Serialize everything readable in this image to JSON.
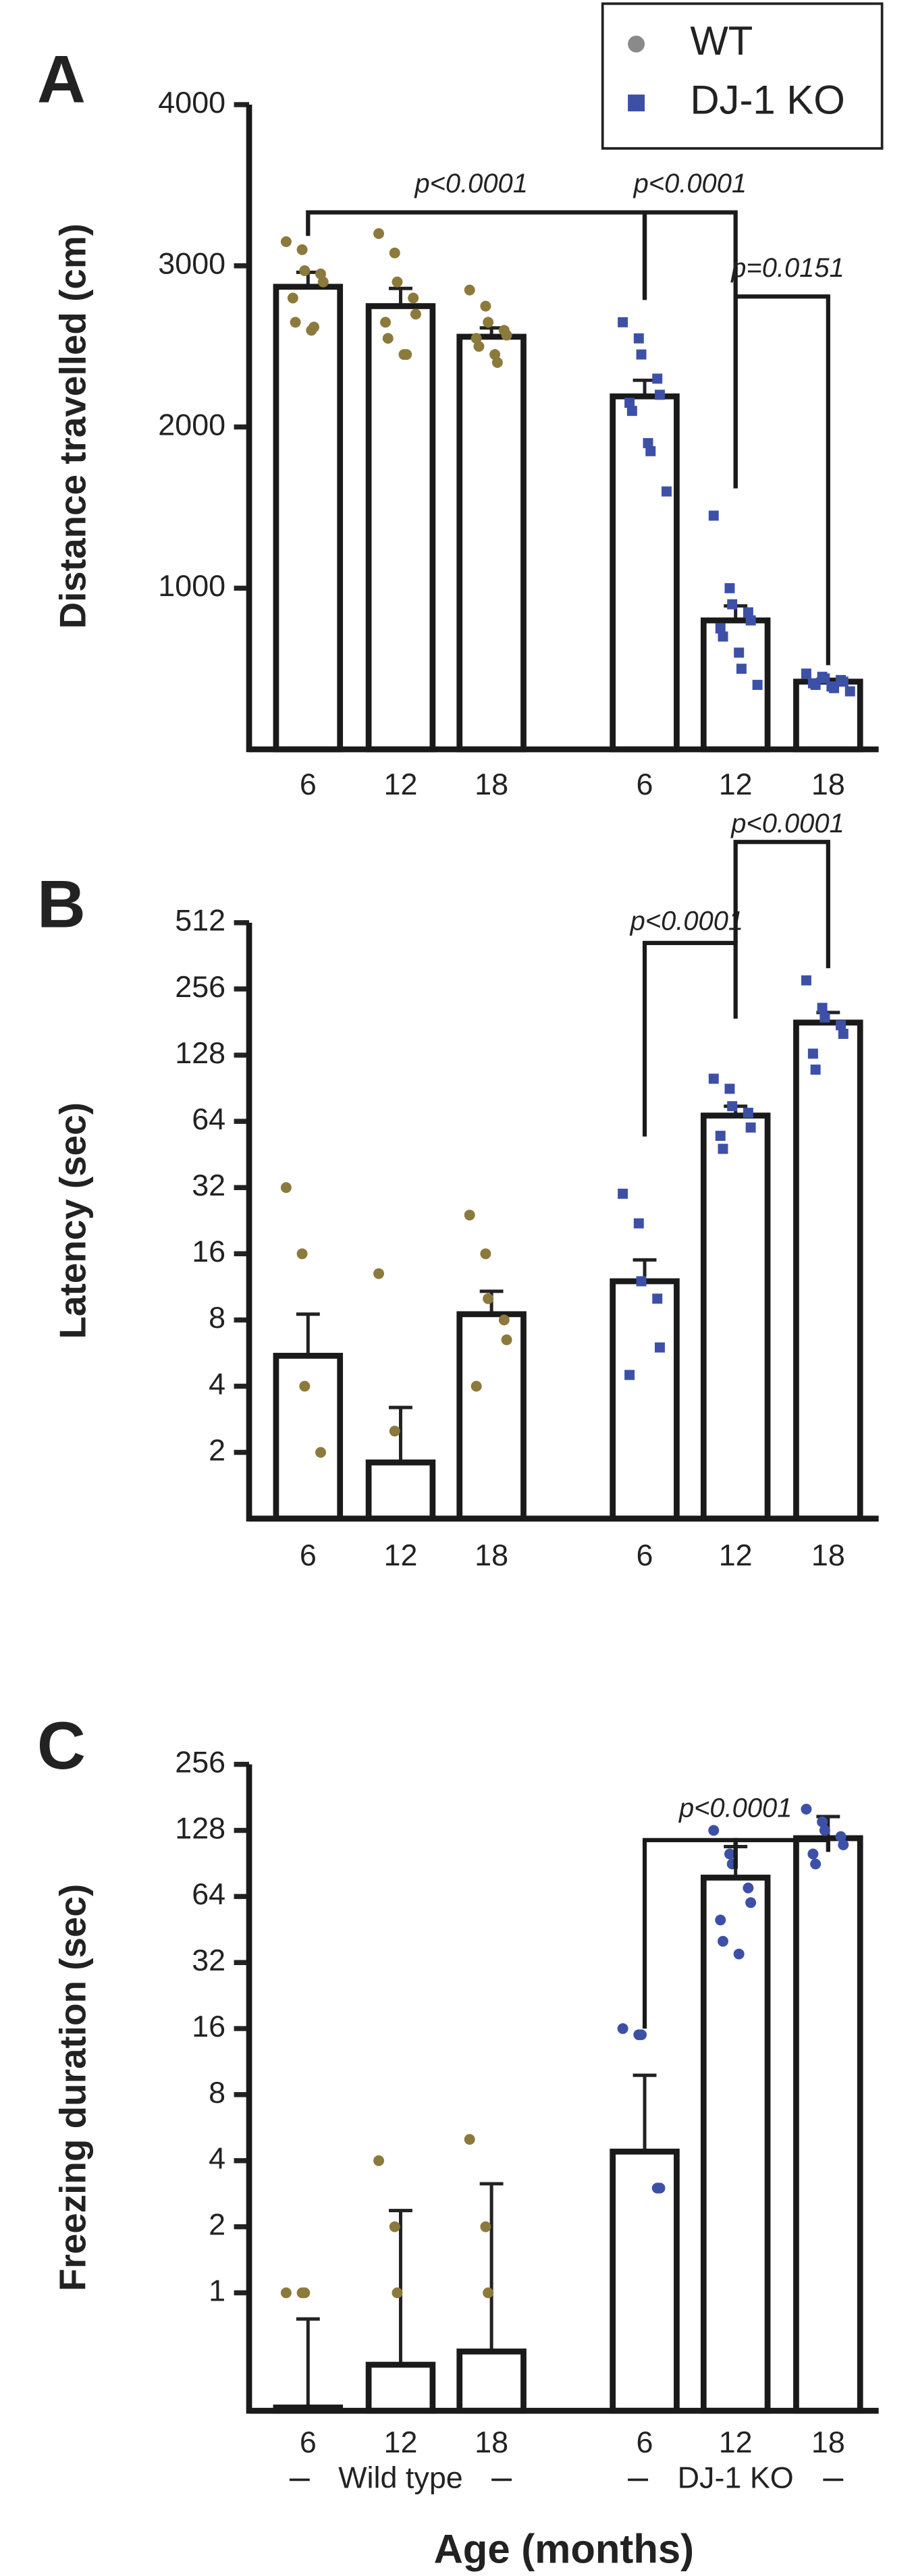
{
  "chart_data": [
    {
      "type": "bar",
      "panel": "A",
      "ylabel": "Distance travelled (cm)",
      "categories": [
        "6",
        "12",
        "18"
      ],
      "ylim": [
        0,
        4000
      ],
      "yticks": [
        1000,
        2000,
        3000,
        4000
      ],
      "log_base": null,
      "legend": "upper right",
      "series": [
        {
          "name": "WT",
          "color": "#8c7a3c",
          "marker": "circle",
          "values": [
            2870,
            2750,
            2560
          ],
          "errors": [
            90,
            110,
            55
          ],
          "points": [
            [
              3150,
              3100,
              2970,
              2950,
              2900,
              2800,
              2650,
              2600,
              2620
            ],
            [
              3200,
              3080,
              2900,
              2800,
              2700,
              2650,
              2550,
              2450,
              2450
            ],
            [
              2850,
              2750,
              2650,
              2600,
              2570,
              2550,
              2500,
              2450,
              2400
            ]
          ]
        },
        {
          "name": "DJ-1 KO",
          "color": "#3d50a8",
          "marker": "square",
          "values": [
            2190,
            800,
            420
          ],
          "errors": [
            100,
            90,
            15
          ],
          "points": [
            [
              2650,
              2550,
              2450,
              2300,
              2200,
              2150,
              2100,
              1900,
              1850,
              1600
            ],
            [
              1450,
              1000,
              900,
              850,
              800,
              750,
              700,
              600,
              500,
              400
            ],
            [
              470,
              450,
              440,
              430,
              420,
              410,
              400,
              390,
              380,
              360
            ]
          ]
        }
      ],
      "annotations": [
        {
          "text": "p<0.0001"
        },
        {
          "text": "p<0.0001"
        },
        {
          "text": "p=0.0151"
        }
      ]
    },
    {
      "type": "bar",
      "panel": "B",
      "ylabel": "Latency (sec)",
      "categories": [
        "6",
        "12",
        "18"
      ],
      "ylim": [
        1,
        512
      ],
      "yticks": [
        2,
        4,
        8,
        16,
        32,
        64,
        128,
        256,
        512
      ],
      "log_base": 2,
      "series": [
        {
          "color": "#8c7a3c",
          "marker": "circle",
          "values": [
            5.5,
            1.8,
            8.5
          ],
          "errors": [
            3,
            1.4,
            2.3
          ],
          "points": [
            [
              32,
              16,
              4,
              2
            ],
            [
              13,
              2.5
            ],
            [
              24,
              16,
              10,
              8,
              6.5,
              4
            ]
          ]
        },
        {
          "color": "#3d50a8",
          "marker": "square",
          "values": [
            12,
            68,
            180
          ],
          "errors": [
            3,
            7,
            20
          ],
          "points": [
            [
              30,
              22,
              12,
              10,
              6,
              4.5
            ],
            [
              100,
              90,
              75,
              70,
              60,
              55,
              48
            ],
            [
              280,
              210,
              190,
              175,
              160,
              130,
              110
            ]
          ]
        }
      ],
      "annotations": [
        {
          "text": "p<0.0001"
        },
        {
          "text": "p<0.0001"
        }
      ]
    },
    {
      "type": "bar",
      "panel": "C",
      "ylabel": "Freezing duration (sec)",
      "xlabel": "Age (months)",
      "categories": [
        "6",
        "12",
        "18"
      ],
      "group_labels": [
        "Wild type",
        "DJ-1 KO"
      ],
      "ylim": [
        0.29,
        256
      ],
      "yticks": [
        1,
        2,
        4,
        8,
        16,
        32,
        64,
        128,
        256
      ],
      "log_base": 2,
      "series": [
        {
          "color": "#8c7a3c",
          "marker": "circle",
          "values": [
            0.3,
            0.47,
            0.54
          ],
          "errors": [
            0.46,
            1.9,
            2.6
          ],
          "points": [
            [
              1,
              1,
              1
            ],
            [
              4,
              2,
              1
            ],
            [
              5,
              2,
              1
            ]
          ]
        },
        {
          "color": "#3d50a8",
          "marker": "circle",
          "values": [
            4.4,
            78,
            118
          ],
          "errors": [
            5.4,
            30,
            30
          ],
          "points": [
            [
              16,
              15,
              15,
              3,
              3
            ],
            [
              128,
              100,
              90,
              70,
              60,
              50,
              40,
              35
            ],
            [
              160,
              140,
              128,
              120,
              110,
              100,
              90
            ]
          ]
        }
      ],
      "annotations": [
        {
          "text": "p<0.0001"
        }
      ]
    }
  ]
}
